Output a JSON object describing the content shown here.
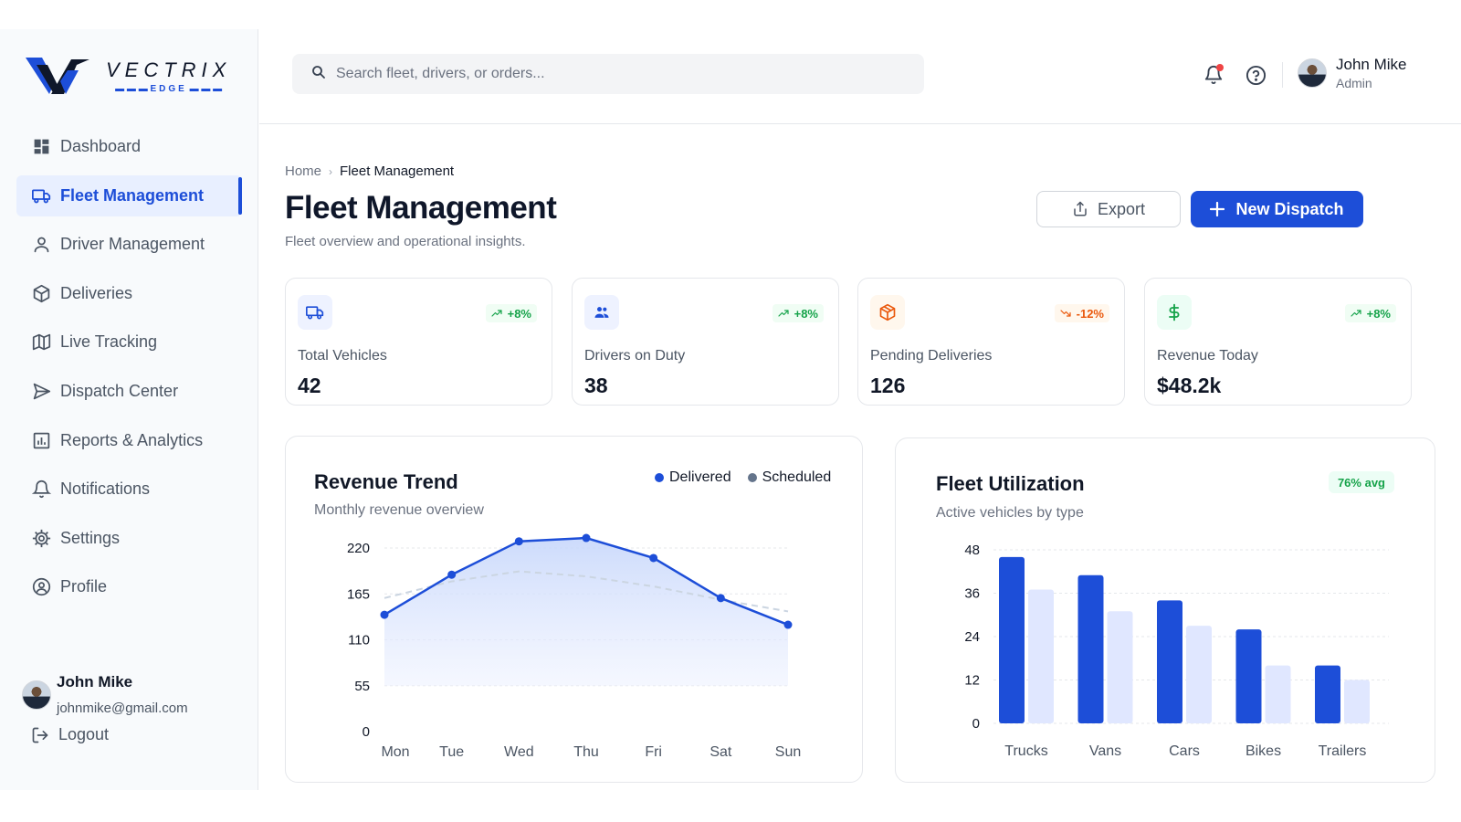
{
  "brand": {
    "name": "VECTRIX",
    "sub": "EDGE",
    "colors": {
      "primary": "#1d4ed8",
      "navy": "#0f172a"
    }
  },
  "sidebar": {
    "items": [
      {
        "label": "Dashboard",
        "icon": "dashboard-icon",
        "active": false
      },
      {
        "label": "Fleet Management",
        "icon": "truck-icon",
        "active": true
      },
      {
        "label": "Driver Management",
        "icon": "user-icon",
        "active": false
      },
      {
        "label": "Deliveries",
        "icon": "box-icon",
        "active": false
      },
      {
        "label": "Live Tracking",
        "icon": "map-icon",
        "active": false
      },
      {
        "label": "Dispatch Center",
        "icon": "send-icon",
        "active": false
      },
      {
        "label": "Reports & Analytics",
        "icon": "chart-icon",
        "active": false
      },
      {
        "label": "Notifications",
        "icon": "bell-icon",
        "active": false
      },
      {
        "label": "Settings",
        "icon": "gear-icon",
        "active": false
      },
      {
        "label": "Profile",
        "icon": "profile-icon",
        "active": false
      }
    ],
    "user": {
      "name": "John Mike",
      "email": "johnmike@gmail.com"
    },
    "logout_label": "Logout"
  },
  "header": {
    "search_placeholder": "Search fleet, drivers, or orders...",
    "user": {
      "name": "John Mike",
      "role": "Admin"
    },
    "has_notification": true
  },
  "page": {
    "breadcrumb": {
      "home": "Home",
      "current": "Fleet Management"
    },
    "title": "Fleet Management",
    "subtitle": "Fleet overview and operational insights.",
    "export_label": "Export",
    "new_dispatch_label": "New Dispatch"
  },
  "stats": [
    {
      "label": "Total Vehicles",
      "value": "42",
      "change": "+8%",
      "trend": "up",
      "icon": "truck-icon",
      "color": "#1d4ed8",
      "bg": "#eef2ff"
    },
    {
      "label": "Drivers on Duty",
      "value": "38",
      "change": "+8%",
      "trend": "up",
      "icon": "users-icon",
      "color": "#1d4ed8",
      "bg": "#eef2ff"
    },
    {
      "label": "Pending Deliveries",
      "value": "126",
      "change": "-12%",
      "trend": "down",
      "icon": "package-icon",
      "color": "#ea580c",
      "bg": "#fff7ed"
    },
    {
      "label": "Revenue Today",
      "value": "$48.2k",
      "change": "+8%",
      "trend": "up",
      "icon": "dollar-icon",
      "color": "#16a34a",
      "bg": "#ecfdf5"
    }
  ],
  "revenue_card": {
    "title": "Revenue Trend",
    "subtitle": "Monthly revenue overview"
  },
  "utilization_card": {
    "title": "Fleet Utilization",
    "subtitle": "Active vehicles by type",
    "badge": "76% avg"
  },
  "chart_data": [
    {
      "type": "line",
      "title": "Revenue Trend",
      "subtitle": "Monthly revenue overview",
      "x": [
        "Mon",
        "Tue",
        "Wed",
        "Thu",
        "Fri",
        "Sat",
        "Sun"
      ],
      "yticks": [
        0,
        55,
        110,
        165,
        220
      ],
      "ylim": [
        0,
        240
      ],
      "grid": true,
      "legend": "top-right",
      "series": [
        {
          "name": "Delivered",
          "values": [
            140,
            188,
            228,
            232,
            208,
            160,
            128
          ],
          "color": "#1d4ed8",
          "style": "solid-area"
        },
        {
          "name": "Scheduled",
          "values": [
            160,
            180,
            192,
            186,
            174,
            158,
            144
          ],
          "color": "#64748b",
          "style": "dashed"
        }
      ]
    },
    {
      "type": "bar",
      "title": "Fleet Utilization",
      "subtitle": "Active vehicles by type",
      "categories": [
        "Trucks",
        "Vans",
        "Cars",
        "Bikes",
        "Trailers"
      ],
      "yticks": [
        0,
        12,
        24,
        36,
        48
      ],
      "ylim": [
        0,
        48
      ],
      "grid": true,
      "series": [
        {
          "values": [
            46,
            41,
            34,
            26,
            16
          ],
          "color": "#1d4ed8"
        },
        {
          "values": [
            37,
            31,
            27,
            16,
            12
          ],
          "color": "#e0e7ff"
        }
      ]
    }
  ]
}
